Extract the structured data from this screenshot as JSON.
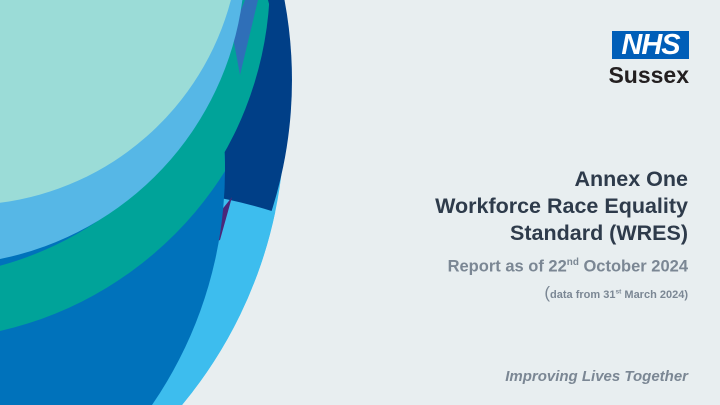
{
  "logo": {
    "brand": "NHS",
    "region": "Sussex",
    "color": "#005eb8"
  },
  "title": {
    "line1": "Annex One",
    "line2": "Workforce Race Equality",
    "line3": "Standard (WRES)"
  },
  "report": {
    "prefix": "Report as of 22",
    "suffix_sup": "nd",
    "rest": " October 2024"
  },
  "data_note": {
    "open": "(",
    "prefix": "data from 31",
    "suffix_sup": "st",
    "rest": " March 2024)"
  },
  "tagline": "Improving Lives Together",
  "colors": {
    "background": "#e8eef0",
    "light_blue": "#3dbdee",
    "navy": "#003f87",
    "mid_blue": "#0072bb",
    "teal": "#00a399",
    "sky_blue": "#56b7e6",
    "pale_teal": "#9bdcd7",
    "purple": "#4b2779"
  }
}
